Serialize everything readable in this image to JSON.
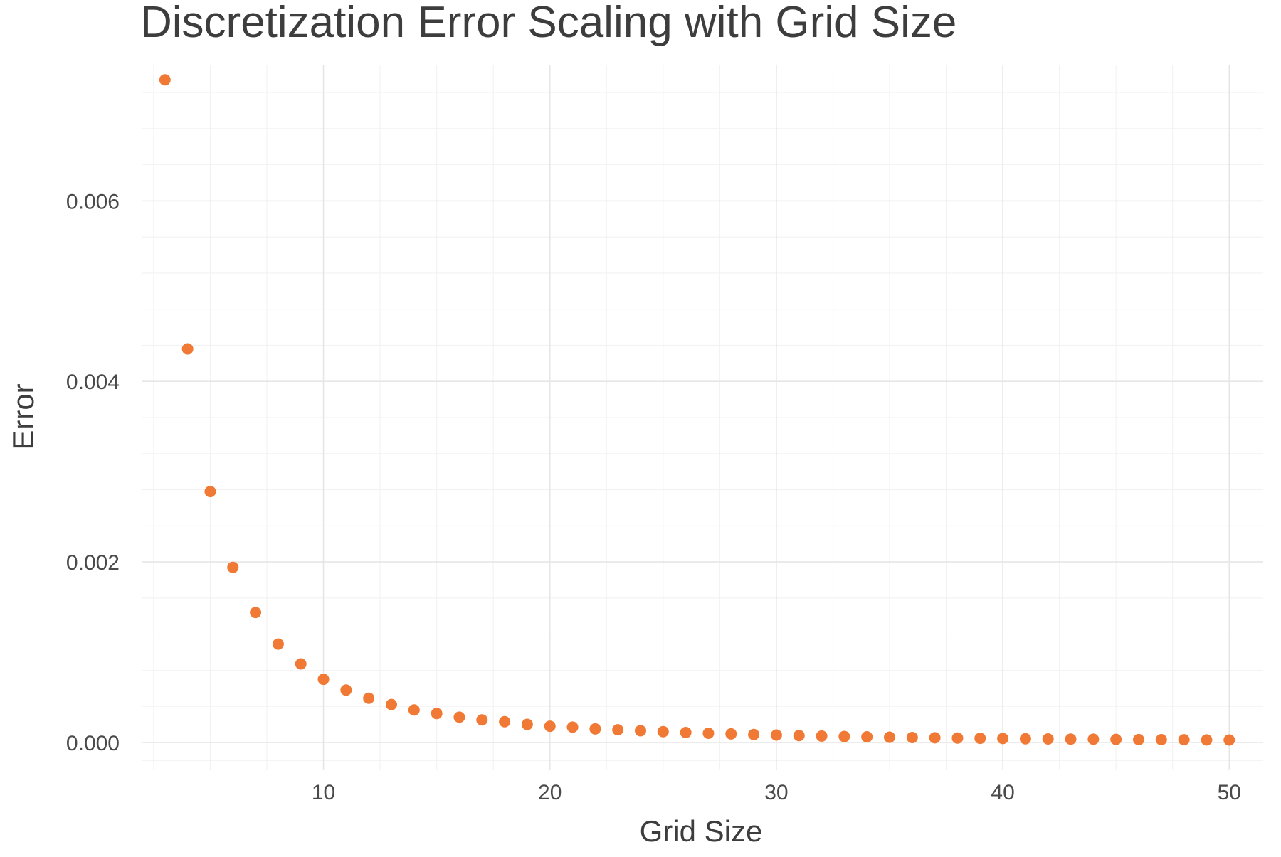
{
  "chart_data": {
    "type": "scatter",
    "title": "Discretization Error Scaling with Grid Size",
    "xlabel": "Grid Size",
    "ylabel": "Error",
    "xlim": [
      2,
      51.5
    ],
    "ylim": [
      -0.0003,
      0.0075
    ],
    "x_major_ticks": [
      10,
      20,
      30,
      40,
      50
    ],
    "x_minor_ticks": [
      2.5,
      5,
      7.5,
      12.5,
      15,
      17.5,
      22.5,
      25,
      27.5,
      32.5,
      35,
      37.5,
      42.5,
      45,
      47.5
    ],
    "y_major_ticks": [
      0.0,
      0.002,
      0.004,
      0.006
    ],
    "y_minor_ticks": [
      -0.0002,
      0.0004,
      0.0008,
      0.0012,
      0.0016,
      0.0024,
      0.0028,
      0.0032,
      0.0036,
      0.0044,
      0.0048,
      0.0052,
      0.0056,
      0.0064,
      0.0068,
      0.0072
    ],
    "x_tick_labels": [
      "10",
      "20",
      "30",
      "40",
      "50"
    ],
    "y_tick_labels": [
      "0.000",
      "0.002",
      "0.004",
      "0.006"
    ],
    "grid": true,
    "legend": "none",
    "point_color": "#F07A35",
    "series": [
      {
        "x": [
          3,
          4,
          5,
          6,
          7,
          8,
          9,
          10,
          11,
          12,
          13,
          14,
          15,
          16,
          17,
          18,
          19,
          20,
          21,
          22,
          23,
          24,
          25,
          26,
          27,
          28,
          29,
          30,
          31,
          32,
          33,
          34,
          35,
          36,
          37,
          38,
          39,
          40,
          41,
          42,
          43,
          44,
          45,
          46,
          47,
          48,
          49,
          50
        ],
        "values": [
          0.00734,
          0.00436,
          0.00278,
          0.00194,
          0.00144,
          0.00109,
          0.00087,
          0.0007,
          0.00058,
          0.00049,
          0.00042,
          0.00036,
          0.00032,
          0.00028,
          0.00025,
          0.00023,
          0.0002,
          0.00018,
          0.00017,
          0.00015,
          0.00014,
          0.00013,
          0.00012,
          0.00011,
          0.000102,
          9.5e-05,
          8.8e-05,
          8.2e-05,
          7.6e-05,
          7.1e-05,
          6.6e-05,
          6.2e-05,
          5.8e-05,
          5.5e-05,
          5.2e-05,
          4.9e-05,
          4.6e-05,
          4.4e-05,
          4.1e-05,
          3.9e-05,
          3.7e-05,
          3.6e-05,
          3.4e-05,
          3.2e-05,
          3.1e-05,
          3e-05,
          2.8e-05,
          2.7e-05
        ]
      }
    ]
  }
}
